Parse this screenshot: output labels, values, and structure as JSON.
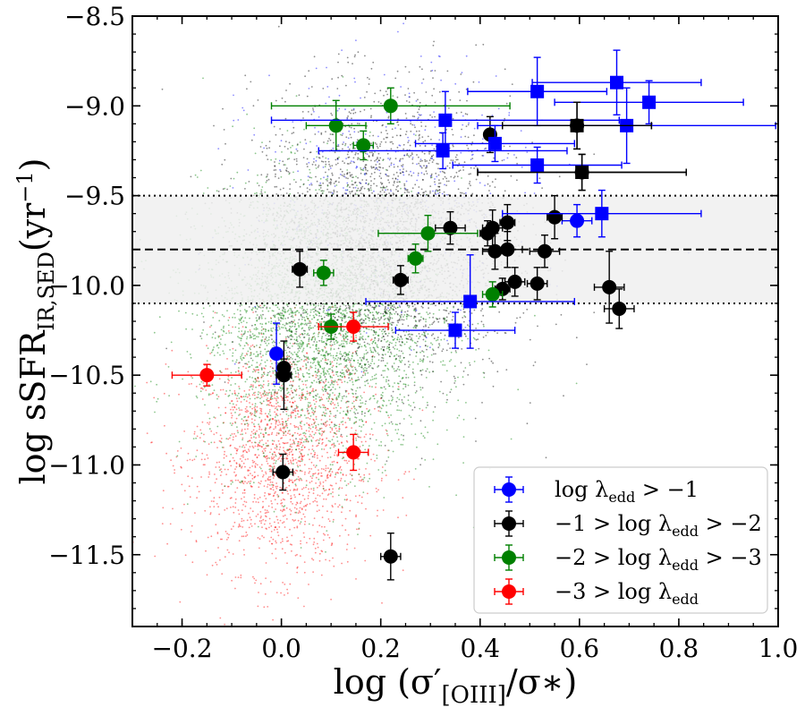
{
  "chart_data": {
    "type": "scatter",
    "title": "",
    "xlabel": "log (σ′[OIII]/σ∗)",
    "xlabel_parts": {
      "prefix": "log (σ′",
      "sub": "[OIII]",
      "suffix": "/σ∗)"
    },
    "ylabel": "log sSFRIR,SED(yr−1)",
    "ylabel_parts": {
      "prefix": "log sSFR",
      "sub": "IR,SED",
      "mid": "(yr",
      "sup": "−1",
      "suffix": ")"
    },
    "xlim": [
      -0.3,
      1.0
    ],
    "ylim": [
      -11.9,
      -8.5
    ],
    "xticks": [
      -0.2,
      0.0,
      0.2,
      0.4,
      0.6,
      0.8,
      1.0
    ],
    "xtick_labels": [
      "−0.2",
      "0.0",
      "0.2",
      "0.4",
      "0.6",
      "0.8",
      "1.0"
    ],
    "yticks": [
      -8.5,
      -9.0,
      -9.5,
      -10.0,
      -10.5,
      -11.0,
      -11.5
    ],
    "ytick_labels": [
      "−8.5",
      "−9.0",
      "−9.5",
      "−10.0",
      "−10.5",
      "−11.0",
      "−11.5"
    ],
    "grid": false,
    "legend_position": "bottom-right",
    "band": {
      "y_low": -10.1,
      "y_high": -9.5,
      "y_mid": -9.8,
      "color": "#f0f0f0"
    },
    "series": [
      {
        "name": "log λedd > −1",
        "label_parts": {
          "prefix": "log λ",
          "sub": "edd",
          "suffix": " > −1"
        },
        "color": "#0000ff",
        "marker": "circle",
        "points": [
          {
            "x": -0.01,
            "y": -10.38,
            "xerr": 0.01,
            "yerr": 0.17
          },
          {
            "x": 0.595,
            "y": -9.64,
            "xerr": 0.03,
            "yerr": 0.09
          }
        ]
      },
      {
        "name": "−1 > log λedd > −2",
        "label_parts": {
          "prefix": "−1 > log λ",
          "sub": "edd",
          "suffix": " > −2"
        },
        "color": "#000000",
        "marker": "circle",
        "points": [
          {
            "x": 0.005,
            "y": -10.46,
            "xerr": 0.01,
            "yerr": 0.05
          },
          {
            "x": 0.005,
            "y": -10.5,
            "xerr": 0.015,
            "yerr": 0.19
          },
          {
            "x": 0.003,
            "y": -11.04,
            "xerr": 0.02,
            "yerr": 0.1
          },
          {
            "x": 0.037,
            "y": -9.91,
            "xerr": 0.015,
            "yerr": 0.1
          },
          {
            "x": 0.24,
            "y": -9.97,
            "xerr": 0.015,
            "yerr": 0.08
          },
          {
            "x": 0.22,
            "y": -11.51,
            "xerr": 0.02,
            "yerr": 0.13
          },
          {
            "x": 0.34,
            "y": -9.68,
            "xerr": 0.03,
            "yerr": 0.09
          },
          {
            "x": 0.415,
            "y": -9.71,
            "xerr": 0.015,
            "yerr": 0.07
          },
          {
            "x": 0.425,
            "y": -9.68,
            "xerr": 0.02,
            "yerr": 0.1
          },
          {
            "x": 0.43,
            "y": -9.81,
            "xerr": 0.025,
            "yerr": 0.1
          },
          {
            "x": 0.455,
            "y": -9.65,
            "xerr": 0.015,
            "yerr": 0.1
          },
          {
            "x": 0.455,
            "y": -9.8,
            "xerr": 0.03,
            "yerr": 0.1
          },
          {
            "x": 0.42,
            "y": -9.16,
            "xerr": 0.01,
            "yerr": 0.1
          },
          {
            "x": 0.445,
            "y": -10.02,
            "xerr": 0.015,
            "yerr": 0.06
          },
          {
            "x": 0.47,
            "y": -9.98,
            "xerr": 0.02,
            "yerr": 0.08
          },
          {
            "x": 0.515,
            "y": -9.99,
            "xerr": 0.02,
            "yerr": 0.09
          },
          {
            "x": 0.53,
            "y": -9.81,
            "xerr": 0.03,
            "yerr": 0.09
          },
          {
            "x": 0.55,
            "y": -9.62,
            "xerr": 0.015,
            "yerr": 0.12
          },
          {
            "x": 0.66,
            "y": -10.01,
            "xerr": 0.03,
            "yerr": 0.2
          },
          {
            "x": 0.68,
            "y": -10.13,
            "xerr": 0.03,
            "yerr": 0.11
          },
          {
            "x": 0.595,
            "y": -9.11,
            "xerr": 0.15,
            "yerr": 0.13
          },
          {
            "x": 0.605,
            "y": -9.37,
            "xerr": 0.21,
            "yerr": 0.1
          }
        ]
      },
      {
        "name": "−2 > log λedd > −3",
        "label_parts": {
          "prefix": "−2 > log λ",
          "sub": "edd",
          "suffix": " > −3"
        },
        "color": "#008000",
        "marker": "circle",
        "points": [
          {
            "x": 0.085,
            "y": -9.93,
            "xerr": 0.02,
            "yerr": 0.07
          },
          {
            "x": 0.1,
            "y": -10.23,
            "xerr": 0.02,
            "yerr": 0.07
          },
          {
            "x": 0.11,
            "y": -9.11,
            "xerr": 0.06,
            "yerr": 0.14
          },
          {
            "x": 0.165,
            "y": -9.22,
            "xerr": 0.02,
            "yerr": 0.08
          },
          {
            "x": 0.22,
            "y": -9.0,
            "xerr": 0.24,
            "yerr": 0.1
          },
          {
            "x": 0.27,
            "y": -9.85,
            "xerr": 0.015,
            "yerr": 0.08
          },
          {
            "x": 0.295,
            "y": -9.71,
            "xerr": 0.1,
            "yerr": 0.1
          },
          {
            "x": 0.425,
            "y": -10.05,
            "xerr": 0.02,
            "yerr": 0.07
          }
        ]
      },
      {
        "name": "−3 > log λedd",
        "label_parts": {
          "prefix": "−3 > log λ",
          "sub": "edd",
          "suffix": ""
        },
        "color": "#ff0000",
        "marker": "circle",
        "points": [
          {
            "x": -0.15,
            "y": -10.5,
            "xerr": 0.07,
            "yerr": 0.06
          },
          {
            "x": 0.145,
            "y": -10.23,
            "xerr": 0.07,
            "yerr": 0.08
          },
          {
            "x": 0.145,
            "y": -10.93,
            "xerr": 0.03,
            "yerr": 0.1
          }
        ]
      },
      {
        "name": "",
        "color": "#0000ff",
        "marker": "square",
        "points": [
          {
            "x": 0.515,
            "y": -8.92,
            "xerr": 0.14,
            "yerr": 0.19
          },
          {
            "x": 0.675,
            "y": -8.87,
            "xerr": 0.17,
            "yerr": 0.18
          },
          {
            "x": 0.74,
            "y": -8.98,
            "xerr": 0.19,
            "yerr": 0.12
          },
          {
            "x": 0.33,
            "y": -9.08,
            "xerr": 0.35,
            "yerr": 0.16
          },
          {
            "x": 0.695,
            "y": -9.11,
            "xerr": 0.3,
            "yerr": 0.21
          },
          {
            "x": 0.43,
            "y": -9.21,
            "xerr": 0.16,
            "yerr": 0.1
          },
          {
            "x": 0.325,
            "y": -9.25,
            "xerr": 0.25,
            "yerr": 0.1
          },
          {
            "x": 0.515,
            "y": -9.33,
            "xerr": 0.17,
            "yerr": 0.1
          },
          {
            "x": 0.645,
            "y": -9.6,
            "xerr": 0.2,
            "yerr": 0.13
          },
          {
            "x": 0.38,
            "y": -10.09,
            "xerr": 0.21,
            "yerr": 0.26
          },
          {
            "x": 0.35,
            "y": -10.25,
            "xerr": 0.12,
            "yerr": 0.1
          }
        ]
      },
      {
        "name": "",
        "color": "#000000",
        "marker": "square",
        "points": [
          {
            "x": 0.595,
            "y": -9.11,
            "xerr": 0.15,
            "yerr": 0.13
          },
          {
            "x": 0.605,
            "y": -9.37,
            "xerr": 0.21,
            "yerr": 0.1
          }
        ]
      }
    ],
    "background_clouds": [
      {
        "color": "#ff0000",
        "count": 1700,
        "x_mean": 0.0,
        "x_sd": 0.09,
        "y_mean": -10.95,
        "y_sd": 0.32
      },
      {
        "color": "#008000",
        "count": 3600,
        "x_mean": 0.08,
        "x_sd": 0.12,
        "y_mean": -10.2,
        "y_sd": 0.38
      },
      {
        "color": "#000000",
        "count": 3200,
        "x_mean": 0.2,
        "x_sd": 0.13,
        "y_mean": -9.75,
        "y_sd": 0.4
      },
      {
        "color": "#0000ff",
        "count": 450,
        "x_mean": 0.22,
        "x_sd": 0.14,
        "y_mean": -9.5,
        "y_sd": 0.35
      }
    ]
  }
}
